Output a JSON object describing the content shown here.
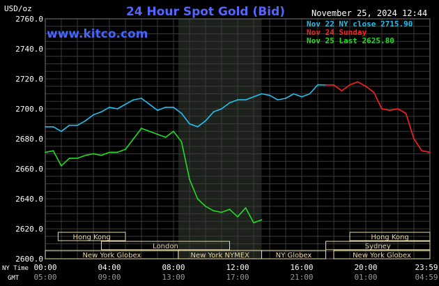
{
  "header": {
    "title": "24 Hour Spot Gold (Bid)",
    "timestamp": "November 25, 2024 12:44",
    "brand": "www.kitco.com",
    "unit": "USD/oz"
  },
  "colors": {
    "background": "#000000",
    "grid": "#3a3a3a",
    "session_shade": "#1c211c",
    "title": "#5566ff",
    "brand": "#4466ff",
    "text": "#ffffff",
    "session_band": "#e8d9a6",
    "cyan": "#20c0f0",
    "red": "#ff2020",
    "green": "#22dd22"
  },
  "legend": [
    {
      "label": "Nov 22 NY close 2715.90",
      "color": "#20c0f0"
    },
    {
      "label": "Nov 24 Sunday",
      "color": "#ff2020"
    },
    {
      "label": "Nov 25 Last 2625.80",
      "color": "#22dd22"
    }
  ],
  "markets": [
    {
      "name": "Hong Kong",
      "start": 0.8,
      "end": 5.0
    },
    {
      "name": "London",
      "start": 3.5,
      "end": 11.5
    },
    {
      "name": "New York NYMEX",
      "start": 8.3,
      "end": 13.5
    },
    {
      "name": "New York Globex",
      "start": 0.0,
      "end": 8.3
    },
    {
      "name": "NY Globex",
      "start": 13.5,
      "end": 17.5
    },
    {
      "name": "Hong Kong",
      "start": 19.0,
      "end": 24.0
    },
    {
      "name": "Sydney",
      "start": 17.5,
      "end": 24.0
    },
    {
      "name": "New York Globex",
      "start": 18.0,
      "end": 24.0
    }
  ],
  "axis_labels": {
    "ny_time": "NY Time",
    "gmt": "GMT"
  },
  "chart_data": {
    "type": "line",
    "title": "24 Hour Spot Gold (Bid)",
    "ylabel": "USD/oz",
    "ylim": [
      2600,
      2760
    ],
    "xlim": [
      0,
      24
    ],
    "yticks": [
      "2760.0",
      "2740.0",
      "2720.0",
      "2700.0",
      "2680.0",
      "2660.0",
      "2640.0",
      "2620.0",
      "2600.0"
    ],
    "xticks_ny": [
      "00:00",
      "04:00",
      "08:00",
      "12:00",
      "16:00",
      "20:00",
      "23:59"
    ],
    "xticks_gmt": [
      "05:00",
      "09:00",
      "13:00",
      "17:00",
      "21:00",
      "01:00",
      "04:59"
    ],
    "xtick_hours": [
      0,
      4,
      8,
      12,
      16,
      20,
      24
    ],
    "grid": true,
    "shaded_session_hours": [
      8.3,
      13.5
    ],
    "series": [
      {
        "name": "Nov 22 NY close 2715.90",
        "color": "#20c0f0",
        "x": [
          0,
          0.5,
          1,
          1.5,
          2,
          2.5,
          3,
          3.5,
          4,
          4.5,
          5,
          5.5,
          6,
          6.5,
          7,
          7.5,
          8,
          8.5,
          9,
          9.5,
          10,
          10.5,
          11,
          11.5,
          12,
          12.5,
          13,
          13.5,
          14,
          14.5,
          15,
          15.5,
          16,
          16.5,
          17,
          17.5
        ],
        "y": [
          2688,
          2688,
          2685,
          2689,
          2689,
          2692,
          2696,
          2698,
          2701,
          2700,
          2703,
          2706,
          2707,
          2703,
          2699,
          2701,
          2701,
          2697,
          2690,
          2688,
          2692,
          2698,
          2700,
          2704,
          2706,
          2706,
          2708,
          2710,
          2709,
          2706,
          2707,
          2710,
          2708,
          2710,
          2716,
          2715.9
        ]
      },
      {
        "name": "Nov 24 Sunday",
        "color": "#ff2020",
        "x": [
          17.5,
          18,
          18.5,
          19,
          19.5,
          20,
          20.5,
          21,
          21.5,
          22,
          22.5,
          23,
          23.5,
          24
        ],
        "y": [
          2715.9,
          2715.9,
          2712,
          2716,
          2718,
          2715,
          2711,
          2700,
          2699,
          2700,
          2697,
          2680,
          2672,
          2671
        ]
      },
      {
        "name": "Nov 25 Last 2625.80",
        "color": "#22dd22",
        "x": [
          0,
          0.5,
          1,
          1.5,
          2,
          2.5,
          3,
          3.5,
          4,
          4.5,
          5,
          5.5,
          6,
          6.5,
          7,
          7.5,
          8,
          8.5,
          9,
          9.5,
          10,
          10.5,
          11,
          11.5,
          12,
          12.5,
          13,
          13.5
        ],
        "y": [
          2671,
          2672,
          2662,
          2667,
          2667,
          2669,
          2670,
          2669,
          2671,
          2671,
          2673,
          2680,
          2687,
          2685,
          2683,
          2681,
          2685,
          2678,
          2653,
          2640,
          2635,
          2632,
          2631,
          2633,
          2628,
          2634,
          2624,
          2626
        ]
      }
    ]
  }
}
